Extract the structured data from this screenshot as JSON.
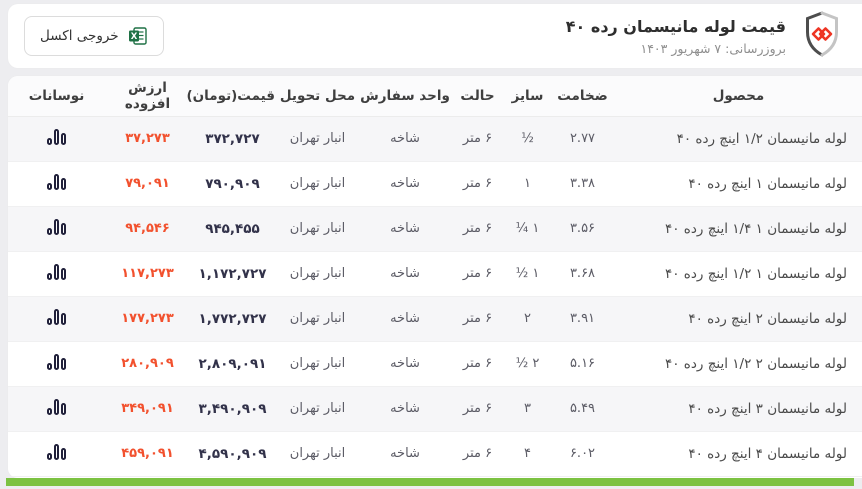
{
  "header": {
    "title": "قیمت لوله مانیسمان رده ۴۰",
    "updated": "بروزرسانی: ۷ شهریور ۱۴۰۳",
    "excel_button_label": "خروجی اکسل"
  },
  "icons": {
    "logo": "shield-logo-icon",
    "excel": "excel-icon",
    "trend": "bar-chart-icon"
  },
  "colors": {
    "accent_red": "#f2512e",
    "price_dark": "#32324a",
    "footer_green": "#7cc242",
    "excel_green": "#1f7145",
    "logo_red": "#ee3524",
    "shield_dark": "#4d4d4d",
    "shield_light": "#c4c4c4",
    "stripe_gray": "#f6f6f8",
    "page_bg": "#ededf0"
  },
  "table": {
    "columns": [
      "محصول",
      "ضخامت",
      "سایز",
      "حالت",
      "واحد سفارش",
      "محل تحویل",
      "قیمت(تومان)",
      "ارزش افزوده",
      "نوسانات"
    ],
    "rows": [
      {
        "product": "لوله مانیسمان ۱/۲ اینچ رده ۴۰",
        "thickness": "۲.۷۷",
        "size": "½",
        "state": "۶ متر",
        "unit": "شاخه",
        "delivery": "انبار تهران",
        "price": "۳۷۲,۷۲۷",
        "vat": "۳۷,۲۷۳"
      },
      {
        "product": "لوله مانیسمان ۱ اینچ رده ۴۰",
        "thickness": "۳.۳۸",
        "size": "۱",
        "state": "۶ متر",
        "unit": "شاخه",
        "delivery": "انبار تهران",
        "price": "۷۹۰,۹۰۹",
        "vat": "۷۹,۰۹۱"
      },
      {
        "product": "لوله مانیسمان ۱ ۱/۴ اینچ رده ۴۰",
        "thickness": "۳.۵۶",
        "size": "۱ ¼",
        "state": "۶ متر",
        "unit": "شاخه",
        "delivery": "انبار تهران",
        "price": "۹۴۵,۴۵۵",
        "vat": "۹۴,۵۴۶"
      },
      {
        "product": "لوله مانیسمان ۱ ۱/۲ اینچ رده ۴۰",
        "thickness": "۳.۶۸",
        "size": "۱ ½",
        "state": "۶ متر",
        "unit": "شاخه",
        "delivery": "انبار تهران",
        "price": "۱,۱۷۲,۷۲۷",
        "vat": "۱۱۷,۲۷۳"
      },
      {
        "product": "لوله مانیسمان ۲ اینچ رده ۴۰",
        "thickness": "۳.۹۱",
        "size": "۲",
        "state": "۶ متر",
        "unit": "شاخه",
        "delivery": "انبار تهران",
        "price": "۱,۷۷۲,۷۲۷",
        "vat": "۱۷۷,۲۷۳"
      },
      {
        "product": "لوله مانیسمان ۲ ۱/۲ اینچ رده ۴۰",
        "thickness": "۵.۱۶",
        "size": "۲ ½",
        "state": "۶ متر",
        "unit": "شاخه",
        "delivery": "انبار تهران",
        "price": "۲,۸۰۹,۰۹۱",
        "vat": "۲۸۰,۹۰۹"
      },
      {
        "product": "لوله مانیسمان ۳ اینچ رده ۴۰",
        "thickness": "۵.۴۹",
        "size": "۳",
        "state": "۶ متر",
        "unit": "شاخه",
        "delivery": "انبار تهران",
        "price": "۳,۴۹۰,۹۰۹",
        "vat": "۳۴۹,۰۹۱"
      },
      {
        "product": "لوله مانیسمان ۴ اینچ رده ۴۰",
        "thickness": "۶.۰۲",
        "size": "۴",
        "state": "۶ متر",
        "unit": "شاخه",
        "delivery": "انبار تهران",
        "price": "۴,۵۹۰,۹۰۹",
        "vat": "۴۵۹,۰۹۱"
      }
    ]
  }
}
